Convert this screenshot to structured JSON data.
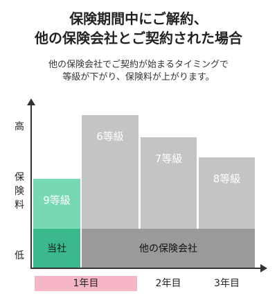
{
  "heading": {
    "line1": "保険期間中にご解約、",
    "line2": "他の保険会社とご契約された場合"
  },
  "subheading": {
    "line1": "他の保険会社でご契約が始まるタイミングで",
    "line2": "等級が下がり、保険料が上がります。"
  },
  "y_axis": {
    "high": "高",
    "label_chars": [
      "保",
      "険",
      "料"
    ],
    "low": "低"
  },
  "x_axis": {
    "labels": [
      "1年目",
      "2年目",
      "3年目"
    ],
    "highlight_index": 0
  },
  "blocks": {
    "current_company": "当社",
    "other_company": "他の保険会社"
  },
  "chart_data": {
    "type": "bar",
    "categories": [
      "1年目",
      "2年目",
      "3年目"
    ],
    "grade_labels": [
      "9等級",
      "6等級",
      "7等級",
      "8等級"
    ],
    "ylabel": "保険料",
    "y_high": "高",
    "y_low": "低"
  },
  "colors": {
    "current_company_base": "#3cb98c",
    "current_company_top": "#76d9b4",
    "other_company_base": "#9a9a9a",
    "other_company_top": "#c4c4c4",
    "highlight": "#f5b6c6",
    "axis": "#333333"
  }
}
